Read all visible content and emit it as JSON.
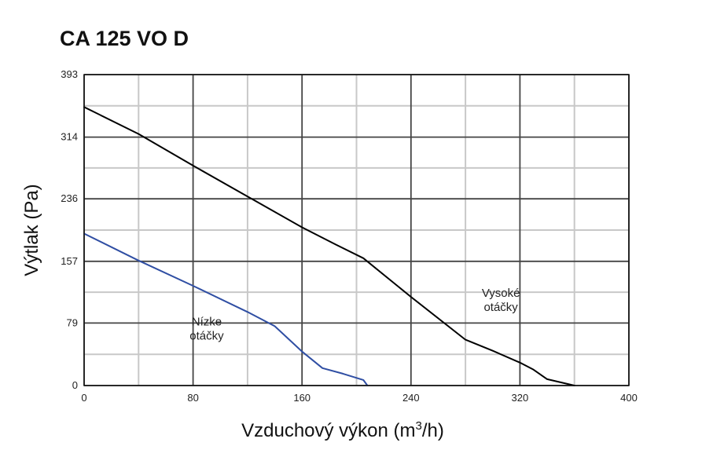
{
  "chart_data": {
    "type": "line",
    "title": "CA 125 VO D",
    "xlabel": "Vzduchový výkon (m",
    "xlabel_sup": "3",
    "xlabel_end": "/h)",
    "ylabel": "Výtlak (Pa)",
    "xlim": [
      0,
      400
    ],
    "ylim": [
      0,
      393
    ],
    "xticks": [
      0,
      80,
      160,
      240,
      320,
      400
    ],
    "xtick_labels": [
      "0",
      "80",
      "160",
      "240",
      "320",
      "400"
    ],
    "yticks": [
      0,
      79,
      157,
      236,
      314,
      393
    ],
    "ytick_labels": [
      "0",
      "79",
      "157",
      "236",
      "314",
      "393"
    ],
    "grid": true,
    "series": [
      {
        "color": "#000000",
        "x": [
          0,
          40,
          80,
          120,
          160,
          185,
          205,
          240,
          280,
          300,
          320,
          330,
          340,
          360
        ],
        "y": [
          352,
          318,
          278,
          239,
          200,
          178,
          161,
          112,
          58,
          44,
          29,
          20,
          8,
          0
        ]
      },
      {
        "color": "#2f4ea3",
        "x": [
          0,
          40,
          80,
          120,
          140,
          160,
          175,
          190,
          205,
          208
        ],
        "y": [
          192,
          158,
          126,
          93,
          75,
          43,
          22,
          15,
          7,
          0
        ]
      }
    ],
    "annotations": [
      {
        "lines": [
          "Vysoké",
          "otáčky"
        ],
        "x": 306,
        "y": 112
      },
      {
        "lines": [
          "Nízke",
          "otáčky"
        ],
        "x": 90,
        "y": 76
      }
    ]
  }
}
